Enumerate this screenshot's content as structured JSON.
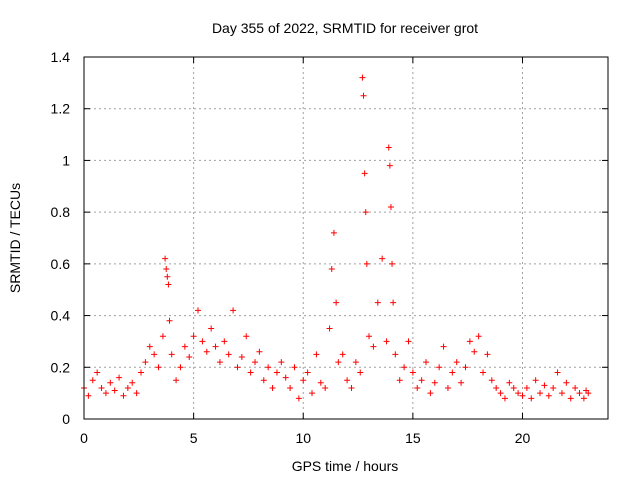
{
  "chart_data": {
    "type": "scatter",
    "title": "Day 355 of 2022, SRMTID for receiver grot",
    "xlabel": "GPS time / hours",
    "ylabel": "SRMTID / TECUs",
    "xlim": [
      0,
      23.9
    ],
    "ylim": [
      0,
      1.4
    ],
    "xticks": [
      0,
      5,
      10,
      15,
      20
    ],
    "xtick_labels": [
      "0",
      "5",
      "10",
      "15",
      "20"
    ],
    "yticks": [
      0,
      0.2,
      0.4,
      0.6,
      0.8,
      1.0,
      1.2,
      1.4
    ],
    "ytick_labels": [
      "0",
      "0.2",
      "0.4",
      "0.6",
      "0.8",
      "1",
      "1.2",
      "1.4"
    ],
    "grid": true,
    "marker": "+",
    "colors": {
      "series": "#ff0000",
      "grid": "#a0a0a0",
      "axis": "#000000"
    },
    "series": [
      {
        "name": "SRMTID",
        "x": [
          0.0,
          0.2,
          0.4,
          0.6,
          0.8,
          1.0,
          1.2,
          1.4,
          1.6,
          1.8,
          2.0,
          2.2,
          2.4,
          2.6,
          2.8,
          3.0,
          3.2,
          3.4,
          3.6,
          3.7,
          3.75,
          3.8,
          3.85,
          3.9,
          4.0,
          4.2,
          4.4,
          4.6,
          4.8,
          5.0,
          5.2,
          5.4,
          5.6,
          5.8,
          6.0,
          6.2,
          6.4,
          6.6,
          6.8,
          7.0,
          7.2,
          7.4,
          7.6,
          7.8,
          8.0,
          8.2,
          8.4,
          8.6,
          8.8,
          9.0,
          9.2,
          9.4,
          9.6,
          9.8,
          10.0,
          10.2,
          10.4,
          10.6,
          10.8,
          11.0,
          11.2,
          11.3,
          11.4,
          11.5,
          11.6,
          11.8,
          12.0,
          12.2,
          12.4,
          12.6,
          12.7,
          12.75,
          12.8,
          12.85,
          12.9,
          13.0,
          13.2,
          13.4,
          13.6,
          13.8,
          13.9,
          13.95,
          14.0,
          14.05,
          14.1,
          14.2,
          14.4,
          14.6,
          14.8,
          15.0,
          15.2,
          15.4,
          15.6,
          15.8,
          16.0,
          16.2,
          16.4,
          16.6,
          16.8,
          17.0,
          17.2,
          17.4,
          17.6,
          17.8,
          18.0,
          18.2,
          18.4,
          18.6,
          18.8,
          19.0,
          19.2,
          19.4,
          19.6,
          19.8,
          20.0,
          20.2,
          20.4,
          20.6,
          20.8,
          21.0,
          21.2,
          21.4,
          21.6,
          21.8,
          22.0,
          22.2,
          22.4,
          22.6,
          22.8,
          22.9,
          23.0
        ],
        "y": [
          0.12,
          0.09,
          0.15,
          0.18,
          0.12,
          0.1,
          0.14,
          0.11,
          0.16,
          0.09,
          0.12,
          0.14,
          0.1,
          0.18,
          0.22,
          0.28,
          0.25,
          0.2,
          0.32,
          0.62,
          0.58,
          0.55,
          0.52,
          0.38,
          0.25,
          0.15,
          0.2,
          0.28,
          0.24,
          0.32,
          0.42,
          0.3,
          0.26,
          0.35,
          0.28,
          0.22,
          0.3,
          0.25,
          0.42,
          0.2,
          0.24,
          0.32,
          0.18,
          0.22,
          0.26,
          0.15,
          0.2,
          0.12,
          0.18,
          0.22,
          0.16,
          0.12,
          0.2,
          0.08,
          0.15,
          0.18,
          0.1,
          0.25,
          0.14,
          0.12,
          0.35,
          0.58,
          0.72,
          0.45,
          0.22,
          0.25,
          0.15,
          0.12,
          0.22,
          0.18,
          1.32,
          1.25,
          0.95,
          0.8,
          0.6,
          0.32,
          0.28,
          0.45,
          0.62,
          0.3,
          1.05,
          0.98,
          0.82,
          0.6,
          0.45,
          0.25,
          0.15,
          0.2,
          0.3,
          0.18,
          0.12,
          0.15,
          0.22,
          0.1,
          0.14,
          0.2,
          0.28,
          0.12,
          0.18,
          0.22,
          0.14,
          0.2,
          0.3,
          0.26,
          0.32,
          0.18,
          0.25,
          0.15,
          0.12,
          0.1,
          0.08,
          0.14,
          0.12,
          0.1,
          0.09,
          0.12,
          0.08,
          0.15,
          0.1,
          0.13,
          0.09,
          0.12,
          0.18,
          0.1,
          0.14,
          0.08,
          0.12,
          0.1,
          0.08,
          0.11,
          0.1
        ]
      }
    ]
  }
}
